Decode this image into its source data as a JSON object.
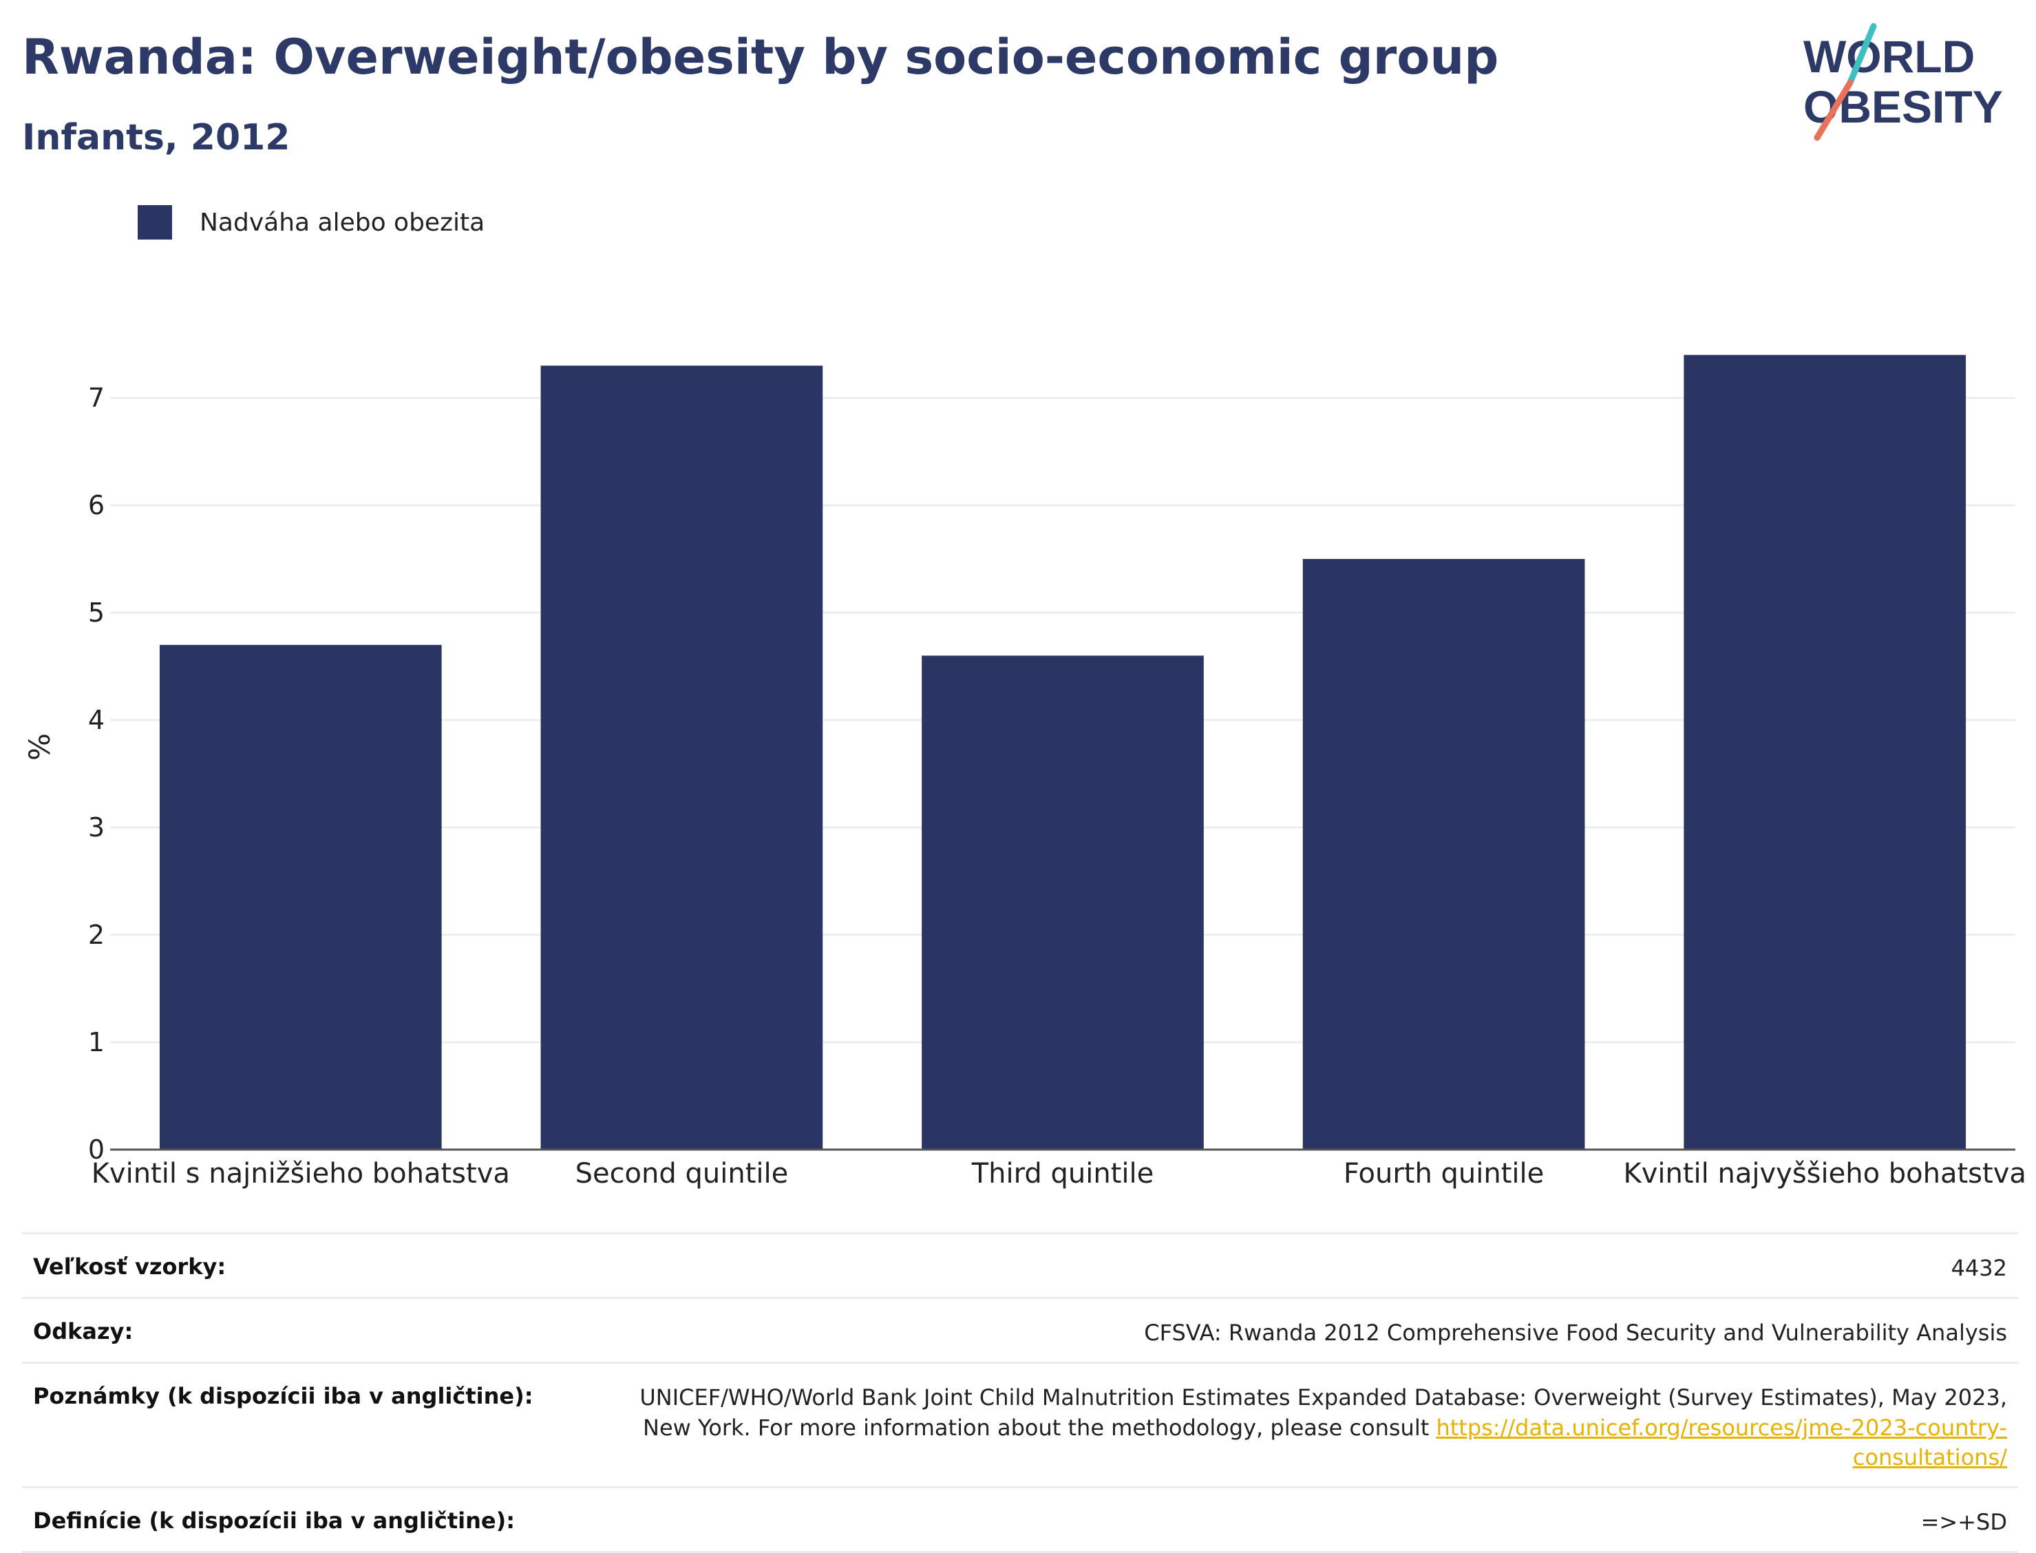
{
  "header": {
    "title": "Rwanda: Overweight/obesity by socio-economic group",
    "subtitle": "Infants, 2012"
  },
  "logo": {
    "line1": "WORLD",
    "line2": "OBESITY",
    "color_text": "#2d3a67",
    "color_teal": "#3fbfbf",
    "color_coral": "#e8735a"
  },
  "chart_data": {
    "type": "bar",
    "categories": [
      "Kvintil s najnižšieho bohatstva",
      "Second quintile",
      "Third quintile",
      "Fourth quintile",
      "Kvintil najvyššieho bohatstva"
    ],
    "series": [
      {
        "name": "Nadváha alebo obezita",
        "values": [
          4.7,
          7.3,
          4.6,
          5.5,
          7.4
        ],
        "color": "#2b3563"
      }
    ],
    "ylabel": "%",
    "ylim": [
      0,
      7.5
    ],
    "yticks": [
      0,
      1,
      2,
      3,
      4,
      5,
      6,
      7
    ],
    "grid": true,
    "legend_position": "top-left"
  },
  "footer": {
    "rows": [
      {
        "label": "Veľkosť vzorky:",
        "value": "4432"
      },
      {
        "label": "Odkazy:",
        "value": "CFSVA: Rwanda 2012 Comprehensive Food Security and Vulnerability Analysis"
      },
      {
        "label": "Poznámky (k dispozícii iba v angličtine):",
        "value": "UNICEF/WHO/World Bank Joint Child Malnutrition Estimates Expanded Database: Overweight (Survey Estimates), May 2023, New York. For more information about the methodology, please consult ",
        "link": "https://data.unicef.org/resources/jme-2023-country-consultations/"
      },
      {
        "label": "Definície (k dispozícii iba v angličtine):",
        "value": "=>+SD"
      }
    ]
  }
}
